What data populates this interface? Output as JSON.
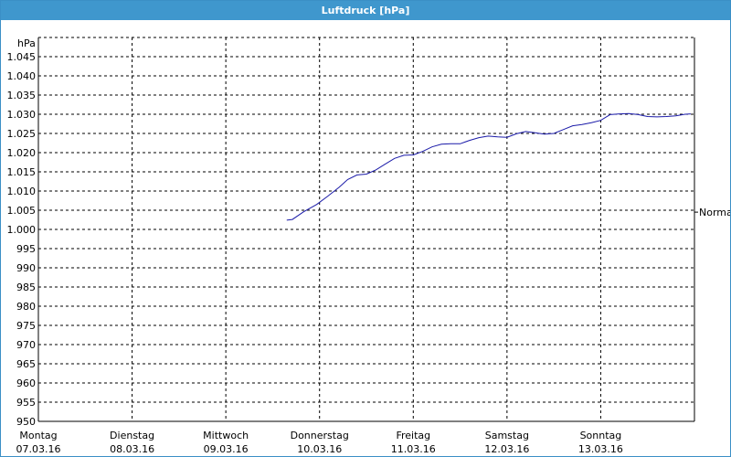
{
  "window": {
    "title": "Luftdruck [hPa]"
  },
  "chart_data": {
    "type": "line",
    "title": "Luftdruck [hPa]",
    "ylabel": "hPa",
    "ylim": [
      950,
      1050
    ],
    "yticks": [
      950,
      955,
      960,
      965,
      970,
      975,
      980,
      985,
      990,
      995,
      1000,
      1005,
      1010,
      1015,
      1020,
      1025,
      1030,
      1035,
      1040,
      1045
    ],
    "ytick_labels": [
      "950",
      "955",
      "960",
      "965",
      "970",
      "975",
      "980",
      "985",
      "990",
      "995",
      "1.000",
      "1.005",
      "1.010",
      "1.015",
      "1.020",
      "1.025",
      "1.030",
      "1.035",
      "1.040",
      "1.045"
    ],
    "xlim": [
      0,
      7
    ],
    "x_categories": [
      {
        "day": "Montag",
        "date": "07.03.16"
      },
      {
        "day": "Dienstag",
        "date": "08.03.16"
      },
      {
        "day": "Mittwoch",
        "date": "09.03.16"
      },
      {
        "day": "Donnerstag",
        "date": "10.03.16"
      },
      {
        "day": "Freitag",
        "date": "11.03.16"
      },
      {
        "day": "Samstag",
        "date": "12.03.16"
      },
      {
        "day": "Sonntag",
        "date": "13.03.16"
      }
    ],
    "grid": true,
    "reference_line": {
      "label": "Normal",
      "value": 1004.5
    },
    "series": [
      {
        "color": "#1a1aa8",
        "x": [
          2.65,
          2.71,
          2.83,
          2.97,
          3.09,
          3.21,
          3.3,
          3.4,
          3.5,
          3.6,
          3.7,
          3.8,
          3.9,
          4.0,
          4.1,
          4.2,
          4.3,
          4.4,
          4.5,
          4.6,
          4.7,
          4.8,
          4.9,
          5.0,
          5.1,
          5.2,
          5.3,
          5.4,
          5.5,
          5.6,
          5.7,
          5.8,
          5.9,
          6.0,
          6.1,
          6.2,
          6.3,
          6.4,
          6.5,
          6.6,
          6.7,
          6.8,
          6.9,
          6.96
        ],
        "y": [
          1002.4,
          1002.6,
          1004.6,
          1006.5,
          1008.7,
          1011.0,
          1013.0,
          1014.2,
          1014.4,
          1015.5,
          1017.0,
          1018.5,
          1019.3,
          1019.4,
          1020.3,
          1021.5,
          1022.2,
          1022.3,
          1022.3,
          1023.2,
          1023.9,
          1024.3,
          1024.1,
          1024.0,
          1024.9,
          1025.5,
          1025.2,
          1024.8,
          1025.0,
          1026.0,
          1027.0,
          1027.3,
          1027.8,
          1028.4,
          1029.9,
          1030.1,
          1030.2,
          1029.9,
          1029.4,
          1029.3,
          1029.4,
          1029.6,
          1030.0,
          1030.1
        ]
      }
    ]
  }
}
